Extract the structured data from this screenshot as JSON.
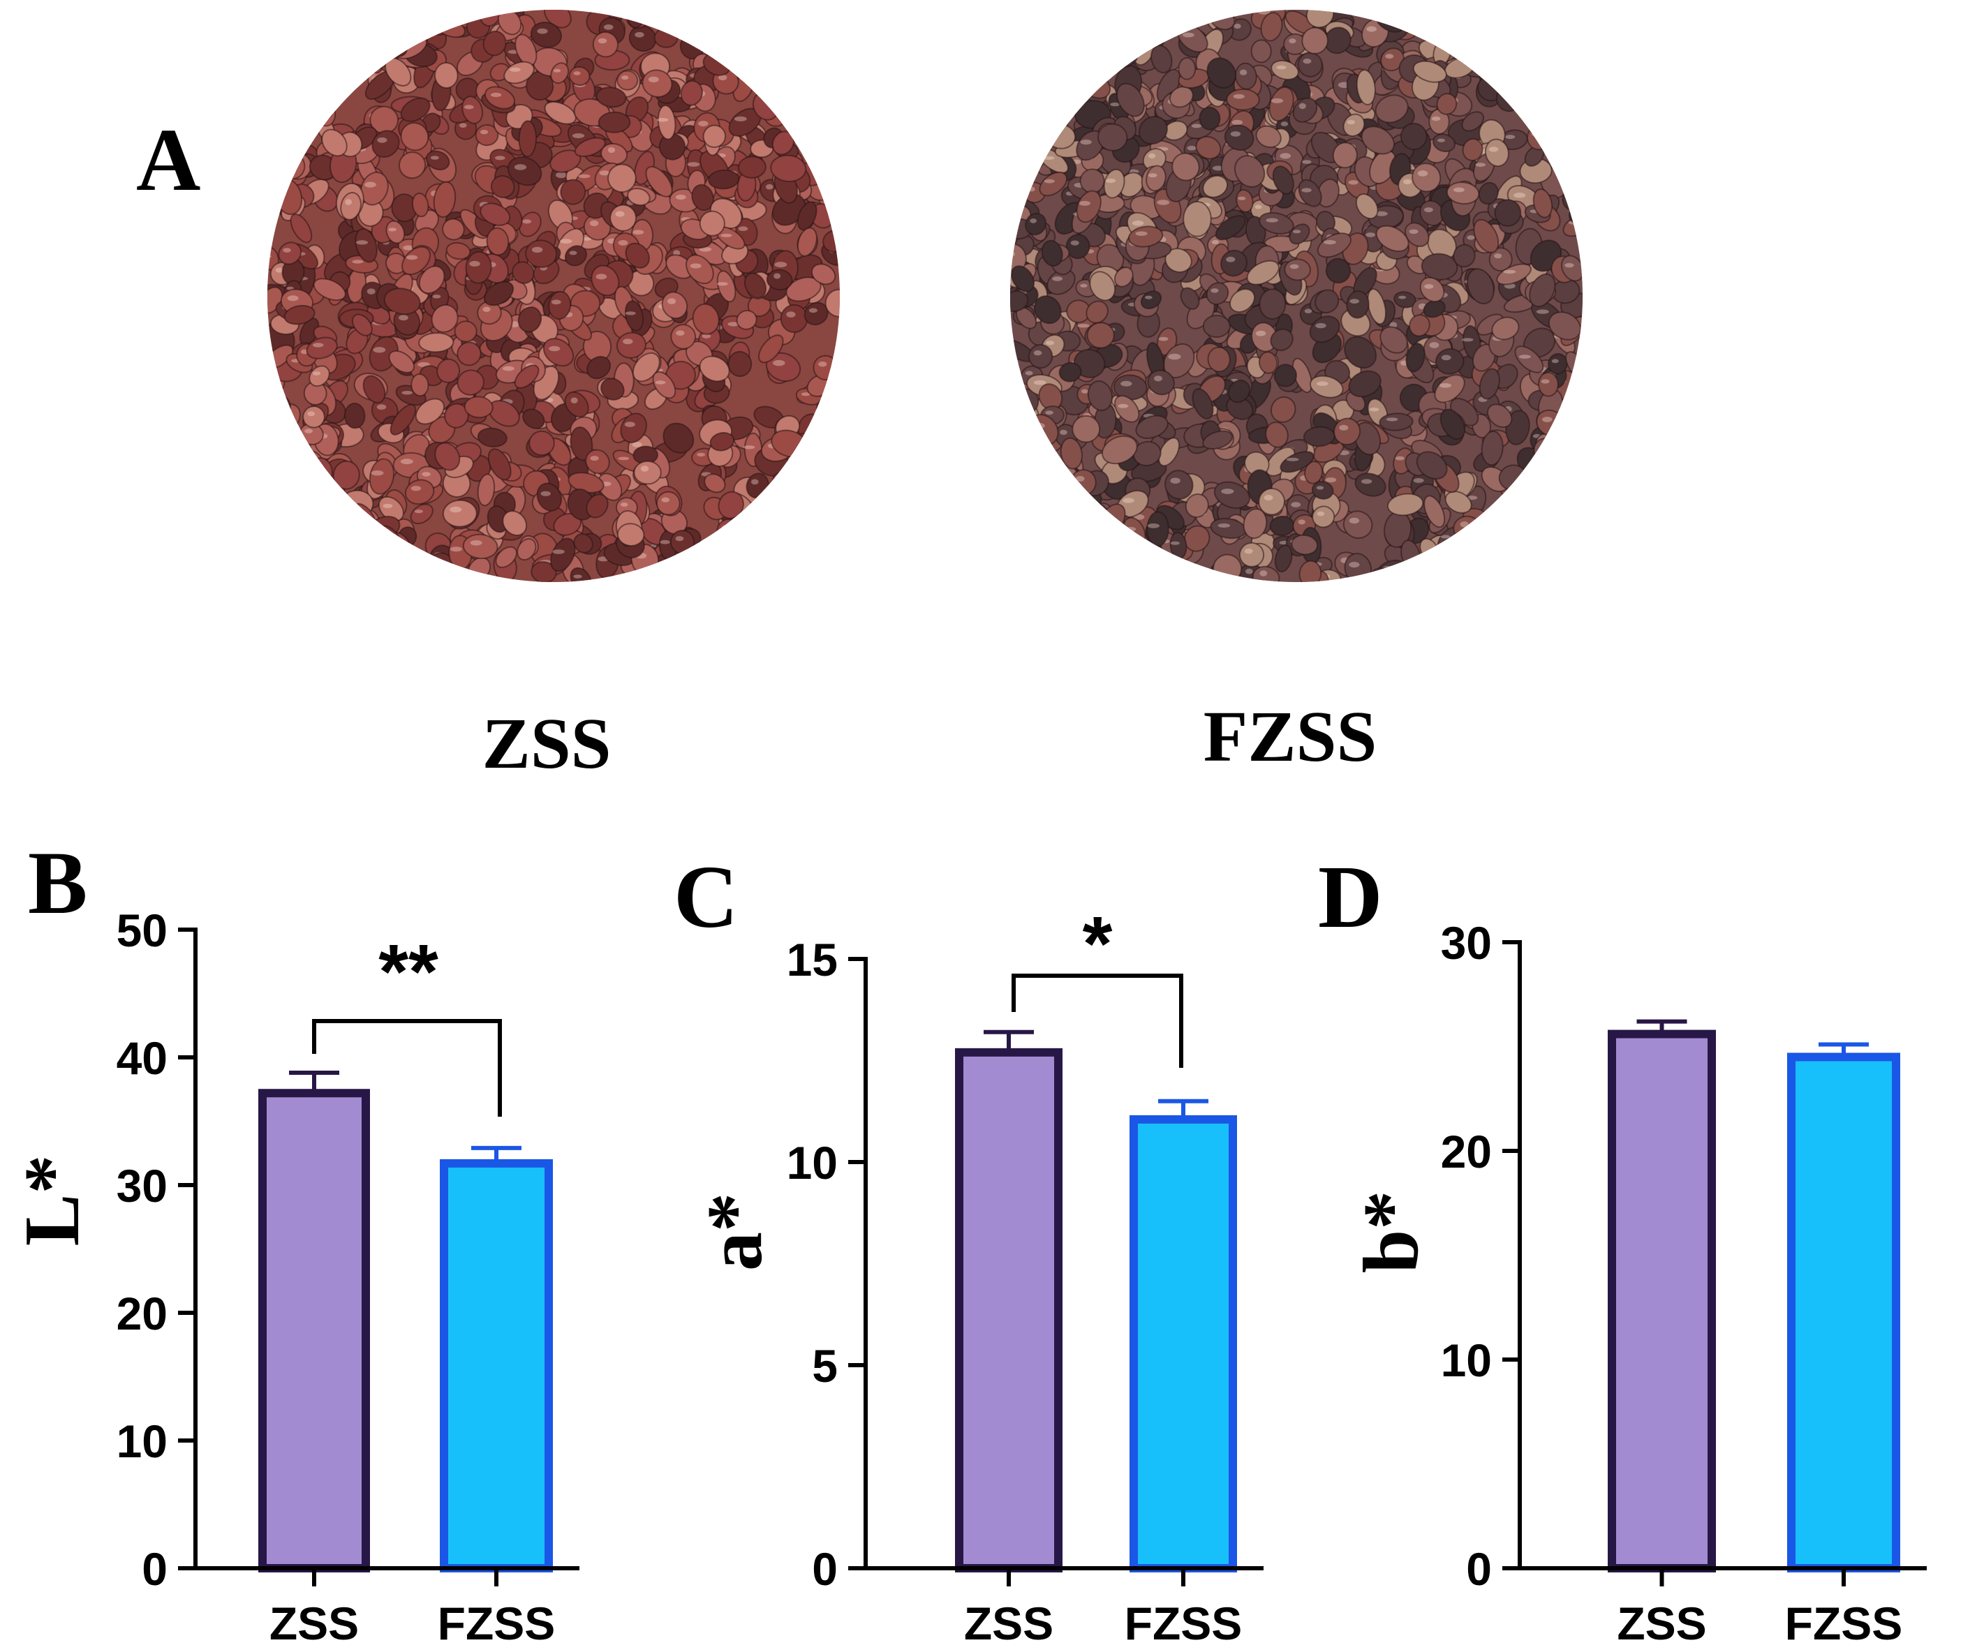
{
  "panel_a": {
    "letter": "A",
    "samples": [
      {
        "name": "ZSS",
        "base_color": "#8a4640",
        "seed_colors": [
          "#9c4a44",
          "#7a3532",
          "#b0605a",
          "#5e2a29",
          "#a85850",
          "#c27a6e",
          "#6b302e",
          "#924240"
        ]
      },
      {
        "name": "FZSS",
        "base_color": "#6e4a4a",
        "seed_colors": [
          "#5a3e40",
          "#7d5452",
          "#3e2e30",
          "#9a6a62",
          "#4b3436",
          "#86504a",
          "#b08a78",
          "#654446"
        ]
      }
    ]
  },
  "colors": {
    "zss_fill": "#a38bd2",
    "zss_edge": "#271746",
    "fzss_fill": "#17c0fb",
    "fzss_edge": "#1b57e6",
    "axis": "#000000"
  },
  "chart_data": [
    {
      "panel": "B",
      "type": "bar",
      "ylabel": "L*",
      "categories": [
        "ZSS",
        "FZSS"
      ],
      "values": [
        37.2,
        31.7
      ],
      "errors": [
        1.6,
        1.2
      ],
      "ylim": [
        0,
        50
      ],
      "yticks": [
        0,
        10,
        20,
        30,
        40,
        50
      ],
      "significance": "**"
    },
    {
      "panel": "C",
      "type": "bar",
      "ylabel": "a*",
      "categories": [
        "ZSS",
        "FZSS"
      ],
      "values": [
        12.7,
        11.05
      ],
      "errors": [
        0.5,
        0.45
      ],
      "ylim": [
        0,
        15
      ],
      "yticks": [
        0,
        5,
        10,
        15
      ],
      "significance": "*"
    },
    {
      "panel": "D",
      "type": "bar",
      "ylabel": "b*",
      "categories": [
        "ZSS",
        "FZSS"
      ],
      "values": [
        25.6,
        24.5
      ],
      "errors": [
        0.6,
        0.6
      ],
      "ylim": [
        0,
        30
      ],
      "yticks": [
        0,
        10,
        20,
        30
      ],
      "significance": ""
    }
  ]
}
